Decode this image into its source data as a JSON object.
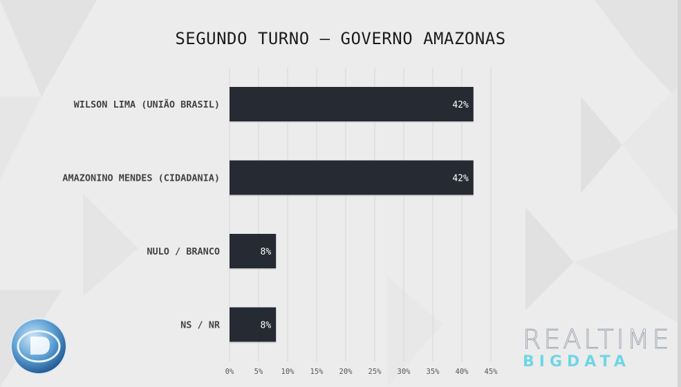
{
  "chart_data": {
    "type": "bar",
    "orientation": "horizontal",
    "title": "SEGUNDO TURNO – GOVERNO AMAZONAS",
    "categories": [
      "WILSON LIMA (UNIÃO BRASIL)",
      "AMAZONINO MENDES (CIDADANIA)",
      "NULO / BRANCO",
      "NS / NR"
    ],
    "values": [
      42,
      42,
      8,
      8
    ],
    "data_labels": [
      "42%",
      "42%",
      "8%",
      "8%"
    ],
    "xlim": [
      0,
      45
    ],
    "xticks": [
      "0%",
      "5%",
      "10%",
      "15%",
      "20%",
      "25%",
      "30%",
      "35%",
      "40%",
      "45%"
    ],
    "grid": "vertical",
    "bar_color": "#252a33"
  },
  "brand": {
    "line1": "REALTIME",
    "line2": "BIGDATA"
  }
}
